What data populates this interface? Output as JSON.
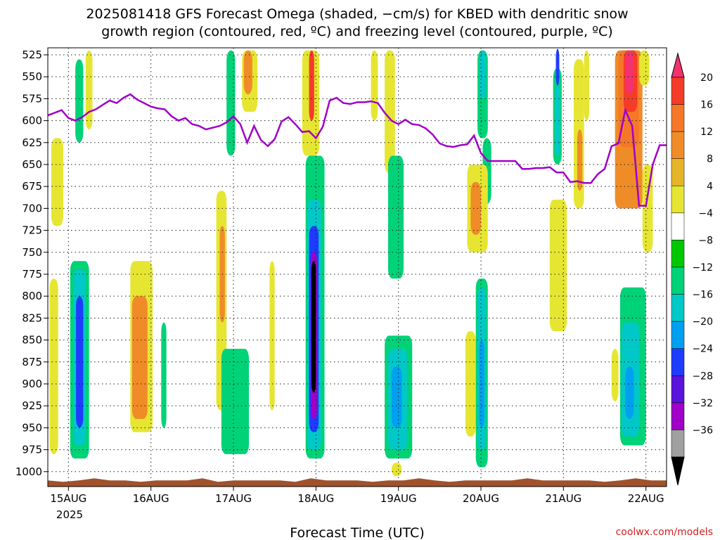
{
  "chart_data": {
    "type": "heatmap",
    "title": "2025081418 GFS Forecast Omega (shaded, −cm/s) for KBED with dendritic snow",
    "subtitle": "growth region (contoured, red, ºC) and freezing level (contoured, purple, ºC)",
    "xlabel": "Forecast Time (UTC)",
    "credit": "coolwx.com/models",
    "y_axis": {
      "ticks": [
        "525",
        "550",
        "575",
        "600",
        "625",
        "650",
        "675",
        "700",
        "725",
        "750",
        "775",
        "800",
        "825",
        "850",
        "875",
        "900",
        "925",
        "950",
        "975",
        "1000"
      ],
      "values": [
        525,
        550,
        575,
        600,
        625,
        650,
        675,
        700,
        725,
        750,
        775,
        800,
        825,
        850,
        875,
        900,
        925,
        950,
        975,
        1000
      ],
      "range": [
        517,
        1017
      ],
      "inverted": true
    },
    "x_axis": {
      "ticks": [
        "15AUG",
        "16AUG",
        "17AUG",
        "18AUG",
        "19AUG",
        "20AUG",
        "21AUG",
        "22AUG"
      ],
      "values": [
        0,
        24,
        48,
        72,
        96,
        120,
        144,
        168
      ],
      "year_label": "2025",
      "range": [
        -6,
        174
      ]
    },
    "colorbar": {
      "labels": [
        "20",
        "16",
        "12",
        "8",
        "4",
        "−4",
        "−8",
        "−12",
        "−16",
        "−20",
        "−24",
        "−28",
        "−32",
        "−36"
      ],
      "colors": [
        "#f5326e",
        "#f53c28",
        "#f57828",
        "#f08c28",
        "#e6b428",
        "#e6e632",
        "#ffffff",
        "#00c800",
        "#00d278",
        "#00c8c8",
        "#00a0f0",
        "#1e3cff",
        "#5a14dc",
        "#a000c8",
        "#a0a0a0",
        "#000000"
      ]
    },
    "grid": true,
    "freezing_level": {
      "color": "#a000c8",
      "hours": [
        -6,
        -4,
        -2,
        0,
        2,
        4,
        6,
        8,
        10,
        12,
        14,
        16,
        18,
        20,
        22,
        24,
        26,
        28,
        30,
        32,
        34,
        36,
        38,
        40,
        42,
        44,
        46,
        48,
        50,
        52,
        54,
        56,
        58,
        60,
        62,
        64,
        66,
        68,
        70,
        72,
        74,
        76,
        78,
        80,
        82,
        84,
        86,
        88,
        90,
        92,
        94,
        96,
        98,
        100,
        102,
        104,
        106,
        108,
        110,
        112,
        114,
        116,
        118,
        120,
        122,
        124,
        126,
        128,
        130,
        132,
        134,
        136,
        138,
        140,
        142,
        144,
        146,
        148,
        150,
        152,
        154,
        156,
        158,
        160,
        162,
        164,
        166,
        168,
        170,
        172,
        174
      ],
      "pressure": [
        594,
        591,
        588,
        597,
        600,
        596,
        590,
        587,
        582,
        577,
        580,
        574,
        570,
        576,
        580,
        584,
        586,
        587,
        595,
        600,
        597,
        604,
        606,
        610,
        608,
        606,
        602,
        595,
        604,
        625,
        606,
        622,
        629,
        621,
        601,
        596,
        604,
        613,
        612,
        620,
        607,
        577,
        574,
        580,
        581,
        579,
        579,
        578,
        580,
        591,
        600,
        604,
        599,
        604,
        605,
        609,
        616,
        626,
        629,
        630,
        628,
        627,
        617,
        637,
        646,
        646,
        646,
        646,
        646,
        655,
        655,
        654,
        654,
        653,
        659,
        659,
        670,
        669,
        671,
        671,
        661,
        655,
        629,
        626,
        588,
        606,
        697,
        697,
        650,
        628,
        628
      ]
    },
    "omega_regions": [
      {
        "value": -10,
        "h0": 2.0,
        "h1": 4.3,
        "p0": 530,
        "p1": 625
      },
      {
        "value": -8,
        "h0": 0.5,
        "h1": 6.0,
        "p0": 760,
        "p1": 985
      },
      {
        "value": -14,
        "h0": 1.5,
        "h1": 5.0,
        "p0": 770,
        "p1": 970
      },
      {
        "value": -20,
        "h0": 2.2,
        "h1": 4.3,
        "p0": 800,
        "p1": 950
      },
      {
        "value": 6,
        "h0": -5.0,
        "h1": -1.5,
        "p0": 620,
        "p1": 720
      },
      {
        "value": 6,
        "h0": -5.5,
        "h1": -3.0,
        "p0": 780,
        "p1": 980
      },
      {
        "value": 6,
        "h0": 5.0,
        "h1": 7.0,
        "p0": 520,
        "p1": 610
      },
      {
        "value": 6,
        "h0": 18.0,
        "h1": 24.5,
        "p0": 760,
        "p1": 955
      },
      {
        "value": 10,
        "h0": 18.5,
        "h1": 23.0,
        "p0": 800,
        "p1": 940
      },
      {
        "value": -8,
        "h0": 27.0,
        "h1": 28.5,
        "p0": 830,
        "p1": 950
      },
      {
        "value": -8,
        "h0": 46.0,
        "h1": 48.5,
        "p0": 520,
        "p1": 640
      },
      {
        "value": 6,
        "h0": 43.0,
        "h1": 46.0,
        "p0": 680,
        "p1": 930
      },
      {
        "value": 10,
        "h0": 44.0,
        "h1": 45.5,
        "p0": 720,
        "p1": 830
      },
      {
        "value": -8,
        "h0": 44.5,
        "h1": 52.5,
        "p0": 860,
        "p1": 980
      },
      {
        "value": 6,
        "h0": 50.5,
        "h1": 55.0,
        "p0": 520,
        "p1": 590
      },
      {
        "value": 10,
        "h0": 51.0,
        "h1": 53.5,
        "p0": 520,
        "p1": 570
      },
      {
        "value": 6,
        "h0": 58.5,
        "h1": 60.0,
        "p0": 760,
        "p1": 930
      },
      {
        "value": 6,
        "h0": 68.0,
        "h1": 73.0,
        "p0": 520,
        "p1": 640
      },
      {
        "value": 16,
        "h0": 70.0,
        "h1": 71.5,
        "p0": 520,
        "p1": 600
      },
      {
        "value": -8,
        "h0": 69.0,
        "h1": 74.5,
        "p0": 640,
        "p1": 985
      },
      {
        "value": -14,
        "h0": 69.5,
        "h1": 73.5,
        "p0": 690,
        "p1": 975
      },
      {
        "value": -22,
        "h0": 70.0,
        "h1": 72.8,
        "p0": 720,
        "p1": 955
      },
      {
        "value": -30,
        "h0": 70.5,
        "h1": 72.3,
        "p0": 750,
        "p1": 940
      },
      {
        "value": -38,
        "h0": 70.7,
        "h1": 72.0,
        "p0": 760,
        "p1": 910
      },
      {
        "value": 6,
        "h0": 88.0,
        "h1": 90.0,
        "p0": 520,
        "p1": 600
      },
      {
        "value": 6,
        "h0": 92.0,
        "h1": 95.0,
        "p0": 520,
        "p1": 660
      },
      {
        "value": -8,
        "h0": 93.0,
        "h1": 97.5,
        "p0": 640,
        "p1": 780
      },
      {
        "value": -8,
        "h0": 92.0,
        "h1": 100.0,
        "p0": 845,
        "p1": 985
      },
      {
        "value": -14,
        "h0": 93.0,
        "h1": 98.5,
        "p0": 860,
        "p1": 975
      },
      {
        "value": -18,
        "h0": 94.0,
        "h1": 97.0,
        "p0": 880,
        "p1": 950
      },
      {
        "value": 6,
        "h0": 94.0,
        "h1": 97.0,
        "p0": 990,
        "p1": 1005
      },
      {
        "value": -8,
        "h0": 119.0,
        "h1": 122.0,
        "p0": 520,
        "p1": 620
      },
      {
        "value": -14,
        "h0": 119.5,
        "h1": 121.5,
        "p0": 520,
        "p1": 575
      },
      {
        "value": -8,
        "h0": 120.5,
        "h1": 123.0,
        "p0": 620,
        "p1": 695
      },
      {
        "value": 6,
        "h0": 116.0,
        "h1": 122.0,
        "p0": 650,
        "p1": 750
      },
      {
        "value": 10,
        "h0": 117.0,
        "h1": 120.0,
        "p0": 670,
        "p1": 730
      },
      {
        "value": 6,
        "h0": 115.5,
        "h1": 118.5,
        "p0": 840,
        "p1": 960
      },
      {
        "value": -8,
        "h0": 118.5,
        "h1": 122.0,
        "p0": 780,
        "p1": 995
      },
      {
        "value": -14,
        "h0": 119.0,
        "h1": 121.5,
        "p0": 790,
        "p1": 975
      },
      {
        "value": -18,
        "h0": 119.5,
        "h1": 121.0,
        "p0": 850,
        "p1": 950
      },
      {
        "value": -8,
        "h0": 141.0,
        "h1": 143.5,
        "p0": 540,
        "p1": 650
      },
      {
        "value": -14,
        "h0": 141.5,
        "h1": 143.0,
        "p0": 560,
        "p1": 640
      },
      {
        "value": -22,
        "h0": 141.8,
        "h1": 142.8,
        "p0": 518,
        "p1": 560
      },
      {
        "value": 6,
        "h0": 140.0,
        "h1": 145.0,
        "p0": 690,
        "p1": 840
      },
      {
        "value": 6,
        "h0": 147.0,
        "h1": 150.0,
        "p0": 530,
        "p1": 700
      },
      {
        "value": 10,
        "h0": 148.0,
        "h1": 149.5,
        "p0": 610,
        "p1": 680
      },
      {
        "value": 6,
        "h0": 150.0,
        "h1": 151.5,
        "p0": 520,
        "p1": 600
      },
      {
        "value": 10,
        "h0": 159.0,
        "h1": 167.0,
        "p0": 520,
        "p1": 700
      },
      {
        "value": 14,
        "h0": 160.0,
        "h1": 166.0,
        "p0": 520,
        "p1": 630
      },
      {
        "value": 18,
        "h0": 161.5,
        "h1": 165.5,
        "p0": 520,
        "p1": 590
      },
      {
        "value": 22,
        "h0": 162.0,
        "h1": 164.5,
        "p0": 520,
        "p1": 570
      },
      {
        "value": 6,
        "h0": 166.0,
        "h1": 169.0,
        "p0": 520,
        "p1": 560
      },
      {
        "value": 6,
        "h0": 167.0,
        "h1": 170.0,
        "p0": 650,
        "p1": 750
      },
      {
        "value": 6,
        "h0": 158.0,
        "h1": 160.0,
        "p0": 860,
        "p1": 920
      },
      {
        "value": -8,
        "h0": 160.5,
        "h1": 168.0,
        "p0": 790,
        "p1": 970
      },
      {
        "value": -14,
        "h0": 161.0,
        "h1": 166.0,
        "p0": 830,
        "p1": 960
      },
      {
        "value": -18,
        "h0": 162.0,
        "h1": 164.5,
        "p0": 880,
        "p1": 940
      }
    ]
  }
}
